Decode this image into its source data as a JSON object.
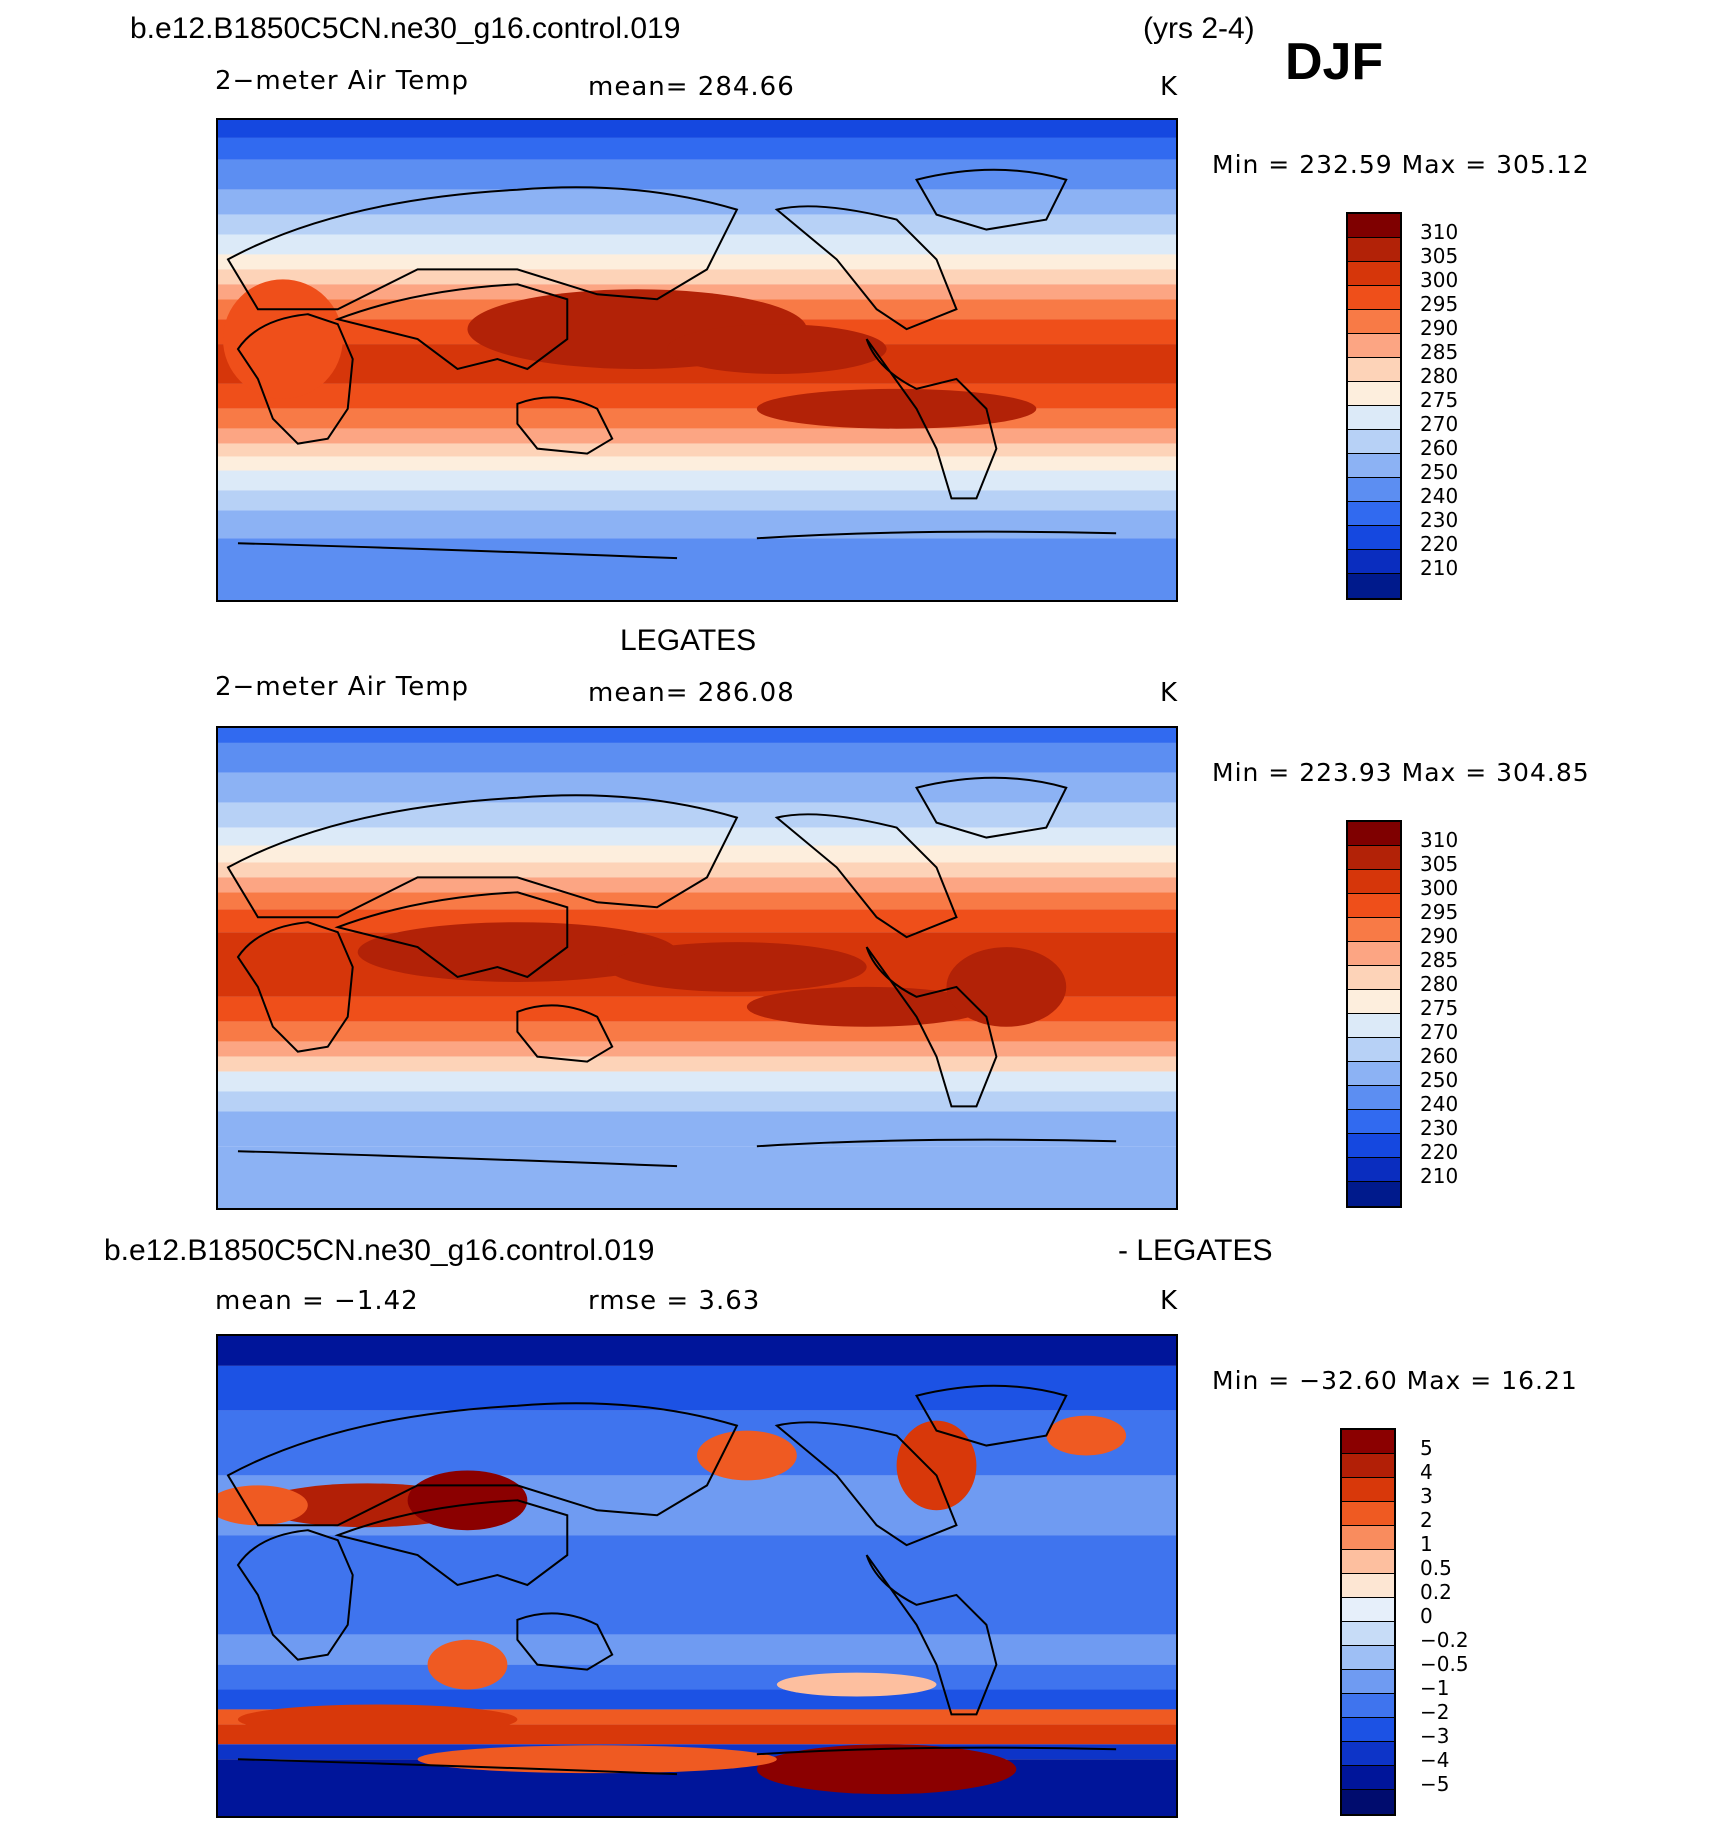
{
  "header": {
    "case_name": "b.e12.B1850C5CN.ne30_g16.control.019",
    "years": "(yrs 2-4)",
    "season": "DJF"
  },
  "panels": [
    {
      "variable": "2−meter Air Temp",
      "stat": "mean=  284.66",
      "units": "K",
      "minmax": "Min  =  232.59  Max  =  305.12",
      "colorbar": [
        "310",
        "305",
        "300",
        "295",
        "290",
        "285",
        "280",
        "275",
        "270",
        "260",
        "250",
        "240",
        "230",
        "220",
        "210"
      ]
    },
    {
      "title": "LEGATES",
      "variable": "2−meter Air Temp",
      "stat": "mean=  286.08",
      "units": "K",
      "minmax": "Min  =  223.93  Max  =  304.85",
      "colorbar": [
        "310",
        "305",
        "300",
        "295",
        "290",
        "285",
        "280",
        "275",
        "270",
        "260",
        "250",
        "240",
        "230",
        "220",
        "210"
      ]
    },
    {
      "title_left": "b.e12.B1850C5CN.ne30_g16.control.019",
      "title_right": "- LEGATES",
      "stat_left": "mean  =   −1.42",
      "stat_mid": "rmse  =     3.63",
      "units": "K",
      "minmax": "Min  =  −32.60  Max  =    16.21",
      "colorbar": [
        "5",
        "4",
        "3",
        "2",
        "1",
        "0.5",
        "0.2",
        "0",
        "−0.2",
        "−0.5",
        "−1",
        "−2",
        "−3",
        "−4",
        "−5"
      ]
    }
  ],
  "colors": {
    "abs": [
      "#7f0000",
      "#b22207",
      "#d6360a",
      "#ef4f1a",
      "#f87a46",
      "#fca583",
      "#fdd3b8",
      "#fdeedd",
      "#dceaf8",
      "#b7d1f6",
      "#8cb2f4",
      "#5c8ef2",
      "#316af0",
      "#1548e0",
      "#0a2dbf",
      "#001a8c"
    ],
    "diff": [
      "#8b0000",
      "#b21f06",
      "#d8380a",
      "#ef5a22",
      "#f98c5e",
      "#fdbf9f",
      "#fde6d3",
      "#e6effa",
      "#c7dcf7",
      "#9ebff5",
      "#6f9bf2",
      "#3f74ee",
      "#1c52e4",
      "#0d34c8",
      "#00159a",
      "#000c6e"
    ]
  }
}
